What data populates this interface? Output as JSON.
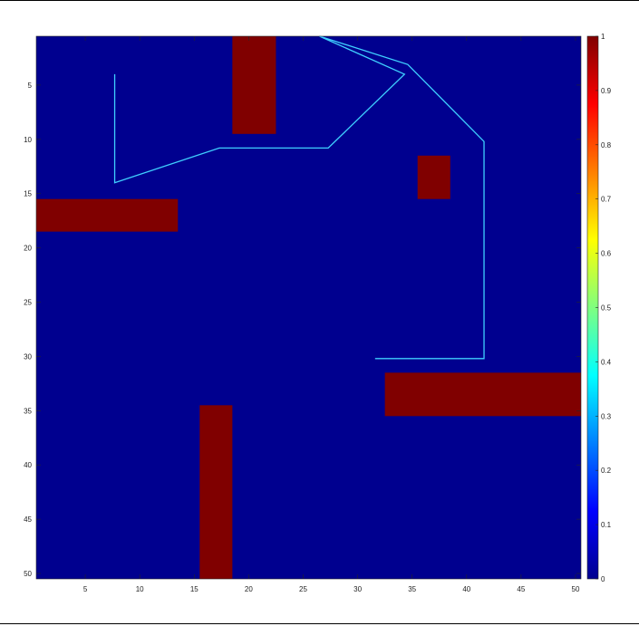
{
  "chart_data": {
    "type": "heatmap",
    "title": "",
    "xlabel": "",
    "ylabel": "",
    "xlim": [
      0.5,
      50.5
    ],
    "ylim": [
      0.5,
      50.5
    ],
    "y_reversed": true,
    "colormap": "jet",
    "grid_values": "binary occupancy grid (0 = free, 1 = obstacle)",
    "low_color": "#00008F",
    "high_color": "#800000",
    "path_color": "#3FD0FF",
    "x_ticks": [
      5,
      10,
      15,
      20,
      25,
      30,
      35,
      40,
      45,
      50
    ],
    "y_ticks": [
      5,
      10,
      15,
      20,
      25,
      30,
      35,
      40,
      45,
      50
    ],
    "colorbar": {
      "range": [
        0,
        1
      ],
      "ticks": [
        0,
        0.1,
        0.2,
        0.3,
        0.4,
        0.5,
        0.6,
        0.7,
        0.8,
        0.9,
        1
      ],
      "tick_labels": [
        "0",
        "0.1",
        "0.2",
        "0.3",
        "0.4",
        "0.5",
        "0.6",
        "0.7",
        "0.8",
        "0.9",
        "1"
      ]
    },
    "obstacles": [
      {
        "x": [
          19,
          22
        ],
        "y": [
          1,
          9
        ],
        "value": 1
      },
      {
        "x": [
          36,
          38
        ],
        "y": [
          12,
          15
        ],
        "value": 1
      },
      {
        "x": [
          1,
          13
        ],
        "y": [
          16,
          18
        ],
        "value": 1
      },
      {
        "x": [
          33,
          50
        ],
        "y": [
          32,
          35
        ],
        "value": 1
      },
      {
        "x": [
          16,
          18
        ],
        "y": [
          35,
          50
        ],
        "value": 1
      }
    ],
    "series": [
      {
        "type": "line",
        "x": [
          31.6,
          41.6,
          41.6,
          34.6,
          26.5,
          34.3,
          27.3,
          17.3,
          7.7,
          7.7
        ],
        "y": [
          30.2,
          30.2,
          10.2,
          3.1,
          0.5,
          4.0,
          10.8,
          10.8,
          14.0,
          4.0
        ]
      }
    ]
  }
}
